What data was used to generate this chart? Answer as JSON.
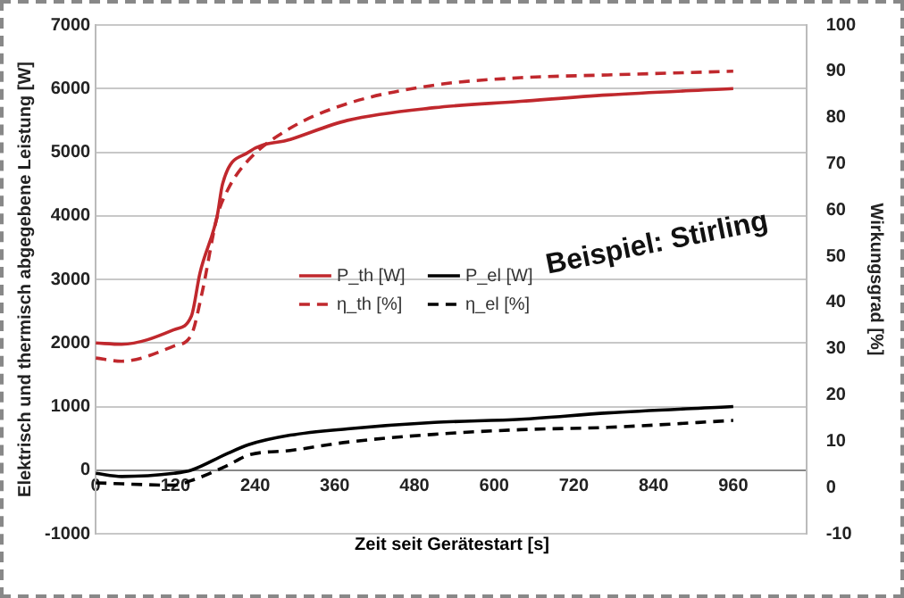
{
  "chart_data": {
    "type": "line",
    "xlabel": "Zeit seit Gerätestart [s]",
    "ylabel": "Elektrisch und thermisch abgegebene Leistung [W]",
    "y2label": "Wirkungsgrad [%]",
    "annotations": [
      "Beispiel: Stirling"
    ],
    "xlim": [
      0,
      1070
    ],
    "xticks": [
      0,
      120,
      240,
      360,
      480,
      600,
      720,
      840,
      960
    ],
    "ylim": [
      -1000,
      7000
    ],
    "yticks": [
      -1000,
      0,
      1000,
      2000,
      3000,
      4000,
      5000,
      6000,
      7000
    ],
    "y2lim": [
      -10,
      100
    ],
    "y2ticks": [
      -10,
      0,
      10,
      20,
      30,
      40,
      50,
      60,
      70,
      80,
      90,
      100
    ],
    "grid": "y",
    "legend": "center",
    "marker": "none",
    "series": [
      {
        "name": "P_th [W]",
        "color": "#c0282d",
        "line_style": "solid",
        "x": [
          0,
          39,
          118,
          144,
          157,
          183,
          191,
          230,
          293,
          379,
          510,
          640,
          771,
          960
        ],
        "values": [
          2000,
          1980,
          2210,
          2420,
          3100,
          4000,
          4500,
          5000,
          5200,
          5500,
          5700,
          5800,
          5900,
          6000
        ]
      },
      {
        "name": "P_el [W]",
        "color": "#000000",
        "line_style": "solid",
        "x": [
          0,
          39,
          118,
          144,
          196,
          230,
          293,
          379,
          510,
          640,
          771,
          960
        ],
        "values": [
          -50,
          -100,
          -50,
          0,
          250,
          400,
          550,
          650,
          750,
          800,
          900,
          1000
        ]
      },
      {
        "name": "η_th [%]",
        "color": "#c0282d",
        "line_style": "dashed",
        "axis": "y2",
        "x": [
          0,
          39,
          118,
          144,
          160,
          183,
          200,
          230,
          293,
          379,
          510,
          640,
          771,
          960
        ],
        "values": [
          28,
          27.3,
          30.6,
          33,
          42,
          58.6,
          64.7,
          70.8,
          77.7,
          83,
          87,
          88.6,
          89.2,
          90
        ]
      },
      {
        "name": "η_el [%]",
        "color": "#000000",
        "line_style": "dashed",
        "axis": "y2",
        "x": [
          0,
          118,
          144,
          196,
          230,
          293,
          379,
          510,
          640,
          771,
          960
        ],
        "values": [
          1,
          0.5,
          1.5,
          4.6,
          7,
          8,
          9.8,
          11.5,
          12.5,
          13,
          14.5
        ]
      }
    ]
  }
}
